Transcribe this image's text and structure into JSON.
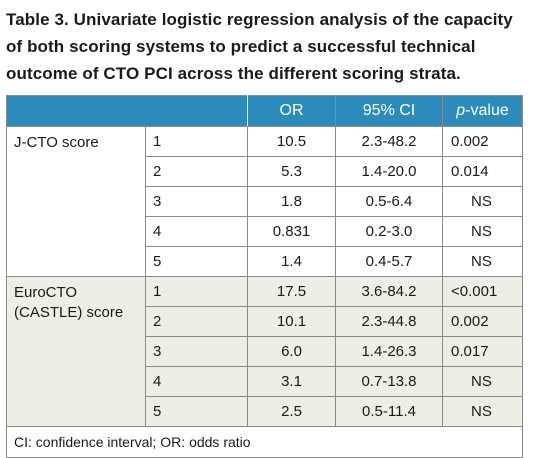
{
  "title": "Table 3. Univariate logistic regression analysis of the capacity of both scoring systems to predict a successful technical outcome of CTO PCI across the different scoring strata.",
  "header": {
    "or": "OR",
    "ci": "95% CI",
    "p_italic": "p",
    "p_rest": "-value"
  },
  "groups": [
    {
      "label": "J-CTO score",
      "rows": [
        {
          "idx": "1",
          "or": "10.5",
          "ci": "2.3-48.2",
          "p": "0.002"
        },
        {
          "idx": "2",
          "or": "5.3",
          "ci": "1.4-20.0",
          "p": "0.014"
        },
        {
          "idx": "3",
          "or": "1.8",
          "ci": "0.5-6.4",
          "p": "NS"
        },
        {
          "idx": "4",
          "or": "0.831",
          "ci": "0.2-3.0",
          "p": "NS"
        },
        {
          "idx": "5",
          "or": "1.4",
          "ci": "0.4-5.7",
          "p": "NS"
        }
      ]
    },
    {
      "label": "EuroCTO (CASTLE) score",
      "rows": [
        {
          "idx": "1",
          "or": "17.5",
          "ci": "3.6-84.2",
          "p": "<0.001"
        },
        {
          "idx": "2",
          "or": "10.1",
          "ci": "2.3-44.8",
          "p": "0.002"
        },
        {
          "idx": "3",
          "or": "6.0",
          "ci": "1.4-26.3",
          "p": "0.017"
        },
        {
          "idx": "4",
          "or": "3.1",
          "ci": "0.7-13.8",
          "p": "NS"
        },
        {
          "idx": "5",
          "or": "2.5",
          "ci": "0.5-11.4",
          "p": "NS"
        }
      ]
    }
  ],
  "footnote": "CI: confidence interval; OR: odds ratio"
}
